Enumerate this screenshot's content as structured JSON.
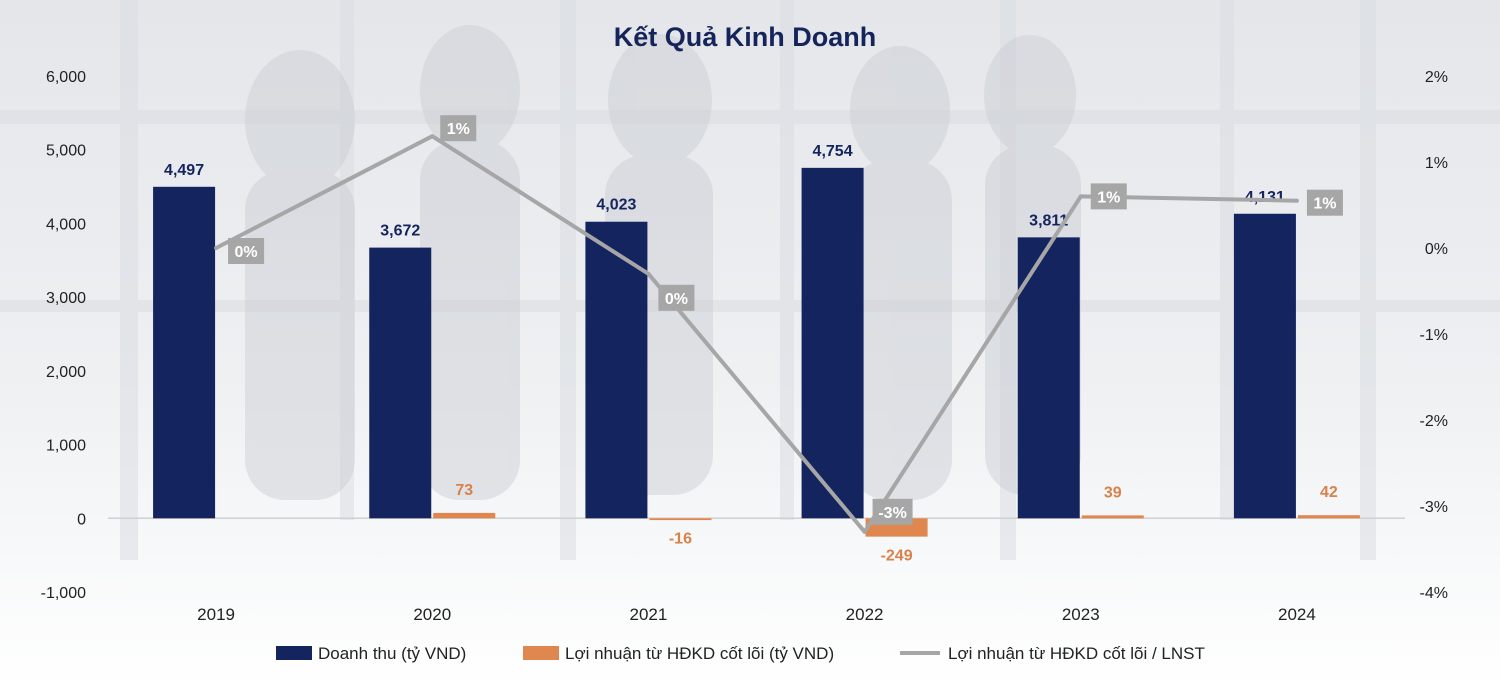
{
  "chart_data": {
    "type": "bar",
    "title": "Kết Quả Kinh Doanh",
    "categories": [
      "2019",
      "2020",
      "2021",
      "2022",
      "2023",
      "2024"
    ],
    "series": [
      {
        "name": "Doanh thu (tỷ VND)",
        "kind": "bar",
        "axis": "left",
        "color": "#14245e",
        "values": [
          4497,
          3672,
          4023,
          4754,
          3811,
          4131
        ],
        "labels": [
          "4,497",
          "3,672",
          "4,023",
          "4,754",
          "3,811",
          "4,131"
        ]
      },
      {
        "name": "Lợi nhuận từ HĐKD cốt lõi (tỷ VND)",
        "kind": "bar",
        "axis": "left",
        "color": "#e0874f",
        "values": [
          0,
          73,
          -16,
          -249,
          39,
          42
        ],
        "labels": [
          "",
          "73",
          "-16",
          "-249",
          "39",
          "42"
        ]
      },
      {
        "name": "Lợi nhuận từ HĐKD cốt lõi / LNST",
        "kind": "line",
        "axis": "right",
        "color": "#a6a6a6",
        "values": [
          0.0,
          1.3,
          -0.3,
          -3.3,
          0.6,
          0.55
        ],
        "labels": [
          "0%",
          "1%",
          "0%",
          "-3%",
          "1%",
          "1%"
        ]
      }
    ],
    "y_left": {
      "lim": [
        -1000,
        6000
      ],
      "ticks": [
        6000,
        5000,
        4000,
        3000,
        2000,
        1000,
        0,
        -1000
      ],
      "tick_labels": [
        "6,000",
        "5,000",
        "4,000",
        "3,000",
        "2,000",
        "1,000",
        "0",
        "-1,000"
      ]
    },
    "y_right": {
      "lim": [
        -4,
        2
      ],
      "ticks": [
        2,
        1,
        0,
        -1,
        -2,
        -3,
        -4
      ],
      "tick_labels": [
        "2%",
        "1%",
        "0%",
        "-1%",
        "-2%",
        "-3%",
        "-4%"
      ]
    },
    "grid": false,
    "legend_position": "bottom"
  }
}
